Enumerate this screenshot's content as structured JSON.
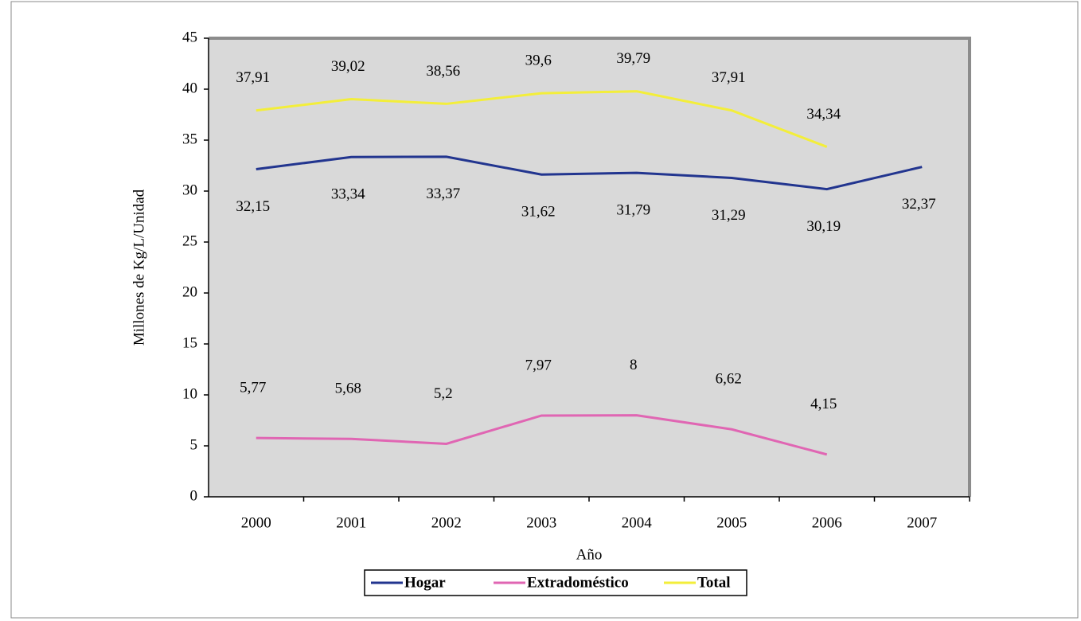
{
  "chart_data": {
    "type": "line",
    "x_label": "Año",
    "y_label": "Millones de Kg/L/Unidad",
    "categories": [
      "2000",
      "2001",
      "2002",
      "2003",
      "2004",
      "2005",
      "2006",
      "2007"
    ],
    "series": [
      {
        "name": "Hogar",
        "color": "#22358f",
        "values": [
          32.15,
          33.34,
          33.37,
          31.62,
          31.79,
          31.29,
          30.19,
          32.37
        ],
        "value_labels": [
          "32,15",
          "33,34",
          "33,37",
          "31,62",
          "31,79",
          "31,29",
          "30,19",
          "32,37"
        ]
      },
      {
        "name": "Extradoméstico",
        "color": "#e066b3",
        "values": [
          5.77,
          5.68,
          5.2,
          7.97,
          8,
          6.62,
          4.15,
          null
        ],
        "value_labels": [
          "5,77",
          "5,68",
          "5,2",
          "7,97",
          "8",
          "6,62",
          "4,15",
          null
        ]
      },
      {
        "name": "Total",
        "color": "#f3ee3a",
        "values": [
          37.91,
          39.02,
          38.56,
          39.6,
          39.79,
          37.91,
          34.34,
          null
        ],
        "value_labels": [
          "37,91",
          "39,02",
          "38,56",
          "39,6",
          "39,79",
          "37,91",
          "34,34",
          null
        ]
      }
    ],
    "ylim": [
      0,
      45
    ],
    "yticks": [
      0,
      5,
      10,
      15,
      20,
      25,
      30,
      35,
      40,
      45
    ],
    "legend": "bottom"
  }
}
